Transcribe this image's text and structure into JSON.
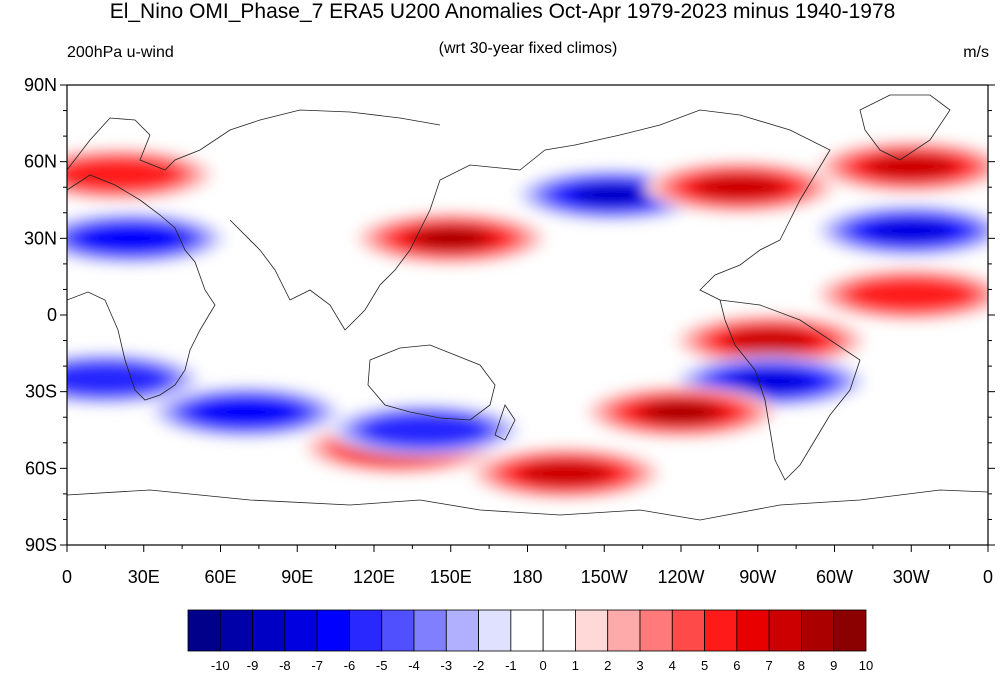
{
  "title": "El_Nino OMI_Phase_7 ERA5 U200 Anomalies Oct-Apr 1979-2023 minus 1940-1978",
  "subtitle_left": "200hPa u-wind",
  "subtitle_center": "(wrt 30-year fixed climos)",
  "subtitle_right": "m/s",
  "lat_labels": [
    "90N",
    "60N",
    "30N",
    "0",
    "30S",
    "60S",
    "90S"
  ],
  "lon_labels": [
    "0",
    "30E",
    "60E",
    "90E",
    "120E",
    "150E",
    "180",
    "150W",
    "120W",
    "90W",
    "60W",
    "30W",
    "0"
  ],
  "colorbar": {
    "labels": [
      "-10",
      "-9",
      "-8",
      "-7",
      "-6",
      "-5",
      "-4",
      "-3",
      "-2",
      "-1",
      "0",
      "1",
      "2",
      "3",
      "4",
      "5",
      "6",
      "7",
      "8",
      "9",
      "10"
    ],
    "colors": [
      "#00008b",
      "#0000a8",
      "#0000c4",
      "#0000e0",
      "#0000ff",
      "#2828ff",
      "#5050ff",
      "#8080ff",
      "#b0b0ff",
      "#e0e0ff",
      "#ffffff",
      "#ffffff",
      "#ffd8d8",
      "#ffaaaa",
      "#ff7a7a",
      "#ff4a4a",
      "#ff1a1a",
      "#e80000",
      "#cc0000",
      "#aa0000",
      "#8b0000"
    ]
  },
  "chart_data": {
    "type": "heatmap",
    "variable": "200hPa u-wind",
    "units": "m/s",
    "lon_range": [
      0,
      360
    ],
    "lat_range": [
      -90,
      90
    ],
    "value_range": [
      -10,
      10
    ],
    "features": [
      {
        "lon": 150,
        "lat": 30,
        "value": 8
      },
      {
        "lon": 213,
        "lat": 47,
        "value": -8
      },
      {
        "lon": 263,
        "lat": 50,
        "value": 7
      },
      {
        "lon": 330,
        "lat": 33,
        "value": -7
      },
      {
        "lon": 330,
        "lat": 58,
        "value": 7
      },
      {
        "lon": 330,
        "lat": 8,
        "value": 5
      },
      {
        "lon": 275,
        "lat": -10,
        "value": 7
      },
      {
        "lon": 275,
        "lat": -26,
        "value": -7
      },
      {
        "lon": 240,
        "lat": -38,
        "value": 8
      },
      {
        "lon": 195,
        "lat": -62,
        "value": 7
      },
      {
        "lon": 130,
        "lat": -52,
        "value": 6
      },
      {
        "lon": 70,
        "lat": -38,
        "value": -6
      },
      {
        "lon": 140,
        "lat": -45,
        "value": -5
      },
      {
        "lon": 25,
        "lat": 30,
        "value": -6
      },
      {
        "lon": 15,
        "lat": -25,
        "value": -5
      },
      {
        "lon": 20,
        "lat": 55,
        "value": 5
      }
    ]
  }
}
